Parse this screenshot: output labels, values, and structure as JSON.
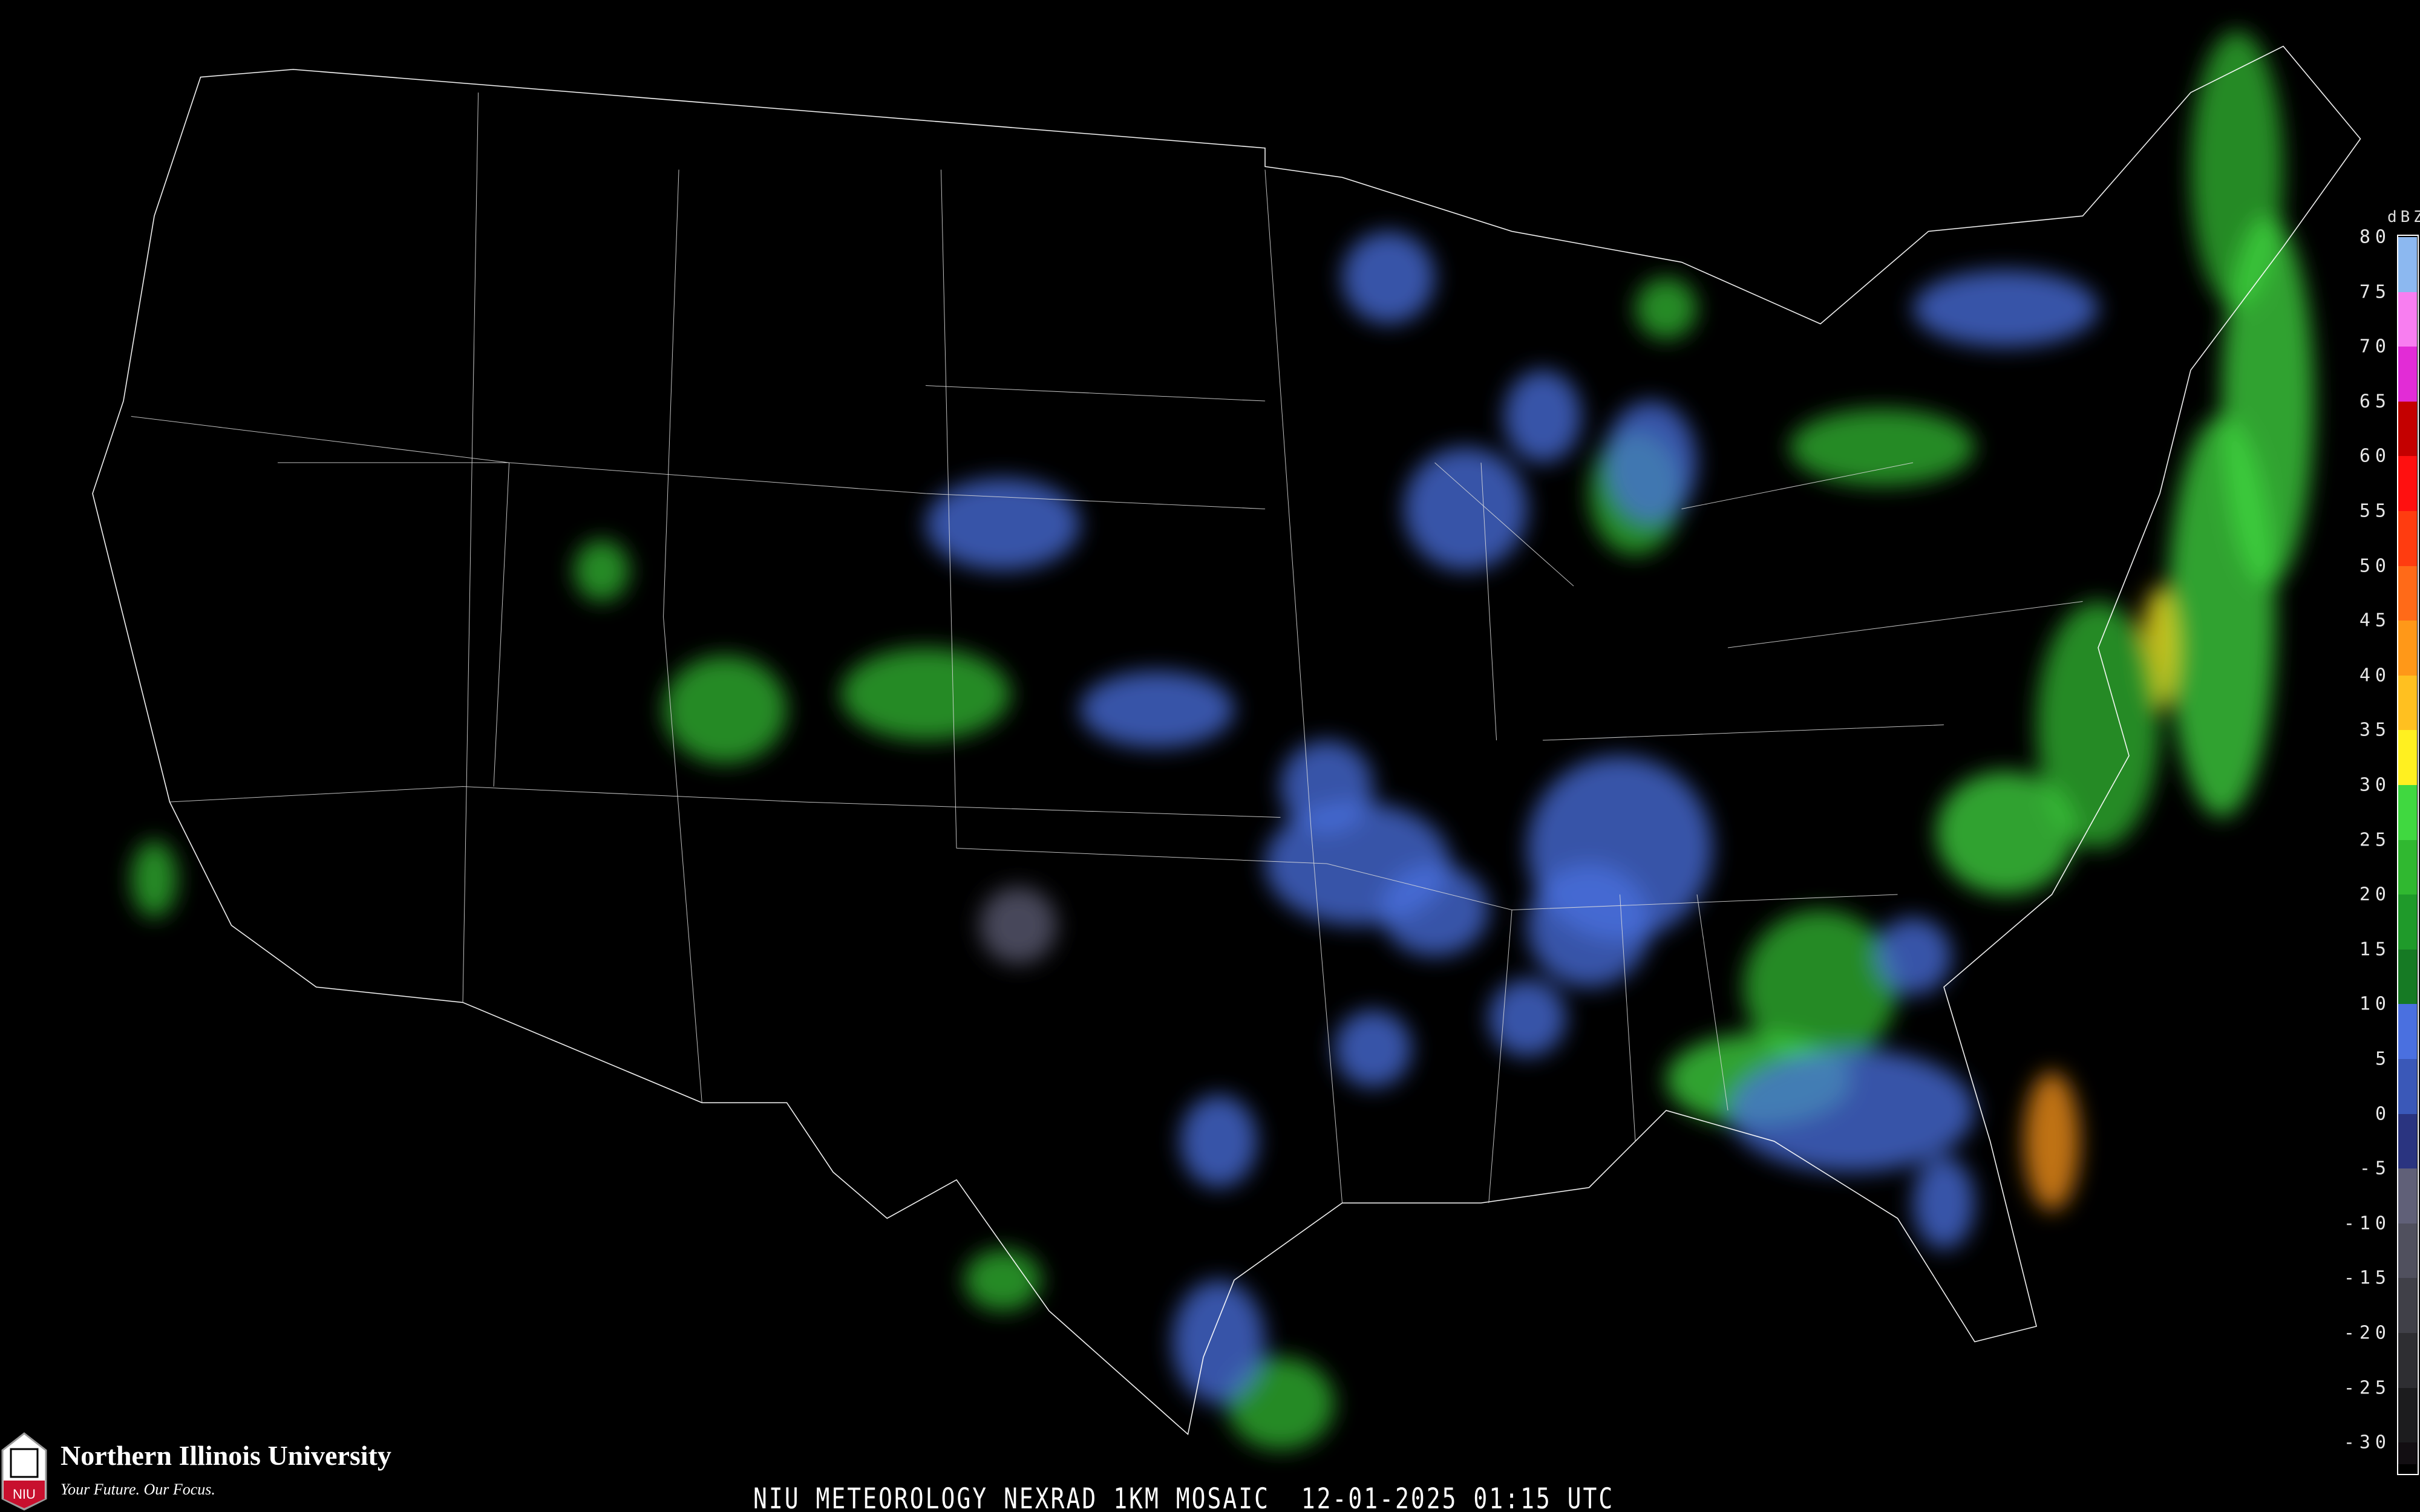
{
  "caption": "NIU METEOROLOGY NEXRAD 1KM MOSAIC  12-01-2025 01:15 UTC",
  "logo": {
    "name": "Northern Illinois University",
    "tagline": "Your Future. Our Focus.",
    "shield_text": "NIU",
    "colors": {
      "shield_red": "#c8102e",
      "shield_gray": "#9a9a9a"
    }
  },
  "legend": {
    "unit": "dBZ",
    "labels": [
      "80",
      "75",
      "70",
      "65",
      "60",
      "55",
      "50",
      "45",
      "40",
      "35",
      "30",
      "25",
      "20",
      "15",
      "10",
      "5",
      "0",
      "-5",
      "-10",
      "-15",
      "-20",
      "-25",
      "-30"
    ],
    "bands": [
      {
        "from": 80,
        "to": 75,
        "color": "#8cb8f0"
      },
      {
        "from": 75,
        "to": 70,
        "color": "#f87ef0"
      },
      {
        "from": 70,
        "to": 65,
        "color": "#e22cd6"
      },
      {
        "from": 65,
        "to": 60,
        "color": "#c40000"
      },
      {
        "from": 60,
        "to": 55,
        "color": "#ff1010"
      },
      {
        "from": 55,
        "to": 50,
        "color": "#ff3c10"
      },
      {
        "from": 50,
        "to": 45,
        "color": "#ff6a18"
      },
      {
        "from": 45,
        "to": 40,
        "color": "#ff9818"
      },
      {
        "from": 40,
        "to": 35,
        "color": "#ffc020"
      },
      {
        "from": 35,
        "to": 30,
        "color": "#fff020"
      },
      {
        "from": 30,
        "to": 25,
        "color": "#40d840"
      },
      {
        "from": 25,
        "to": 20,
        "color": "#30b830"
      },
      {
        "from": 20,
        "to": 15,
        "color": "#1f9a2a"
      },
      {
        "from": 15,
        "to": 10,
        "color": "#167a24"
      },
      {
        "from": 10,
        "to": 5,
        "color": "#4a70e0"
      },
      {
        "from": 5,
        "to": 0,
        "color": "#3a58b8"
      },
      {
        "from": 0,
        "to": -5,
        "color": "#2a3480"
      },
      {
        "from": -5,
        "to": -10,
        "color": "#606078"
      },
      {
        "from": -10,
        "to": -15,
        "color": "#50505e"
      },
      {
        "from": -15,
        "to": -20,
        "color": "#404048"
      },
      {
        "from": -20,
        "to": -25,
        "color": "#2e2e32"
      },
      {
        "from": -25,
        "to": -30,
        "color": "#1c1c1e"
      },
      {
        "from": -30,
        "to": -32,
        "color": "#120e12"
      }
    ]
  },
  "map_colors": {
    "background": "#000000",
    "borders": "#ffffff",
    "counties": "#555555",
    "highways": "#8a4a20"
  }
}
